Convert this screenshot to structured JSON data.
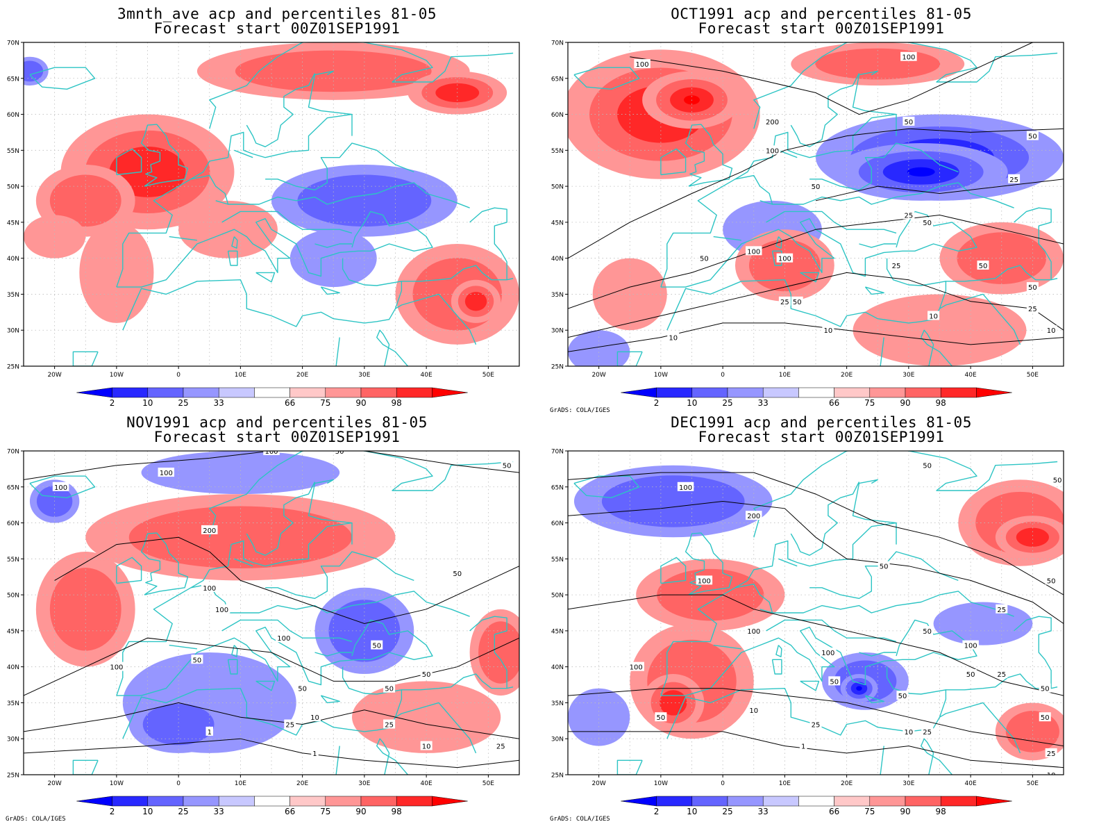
{
  "credit_text": "GrADS: COLA/IGES",
  "lat_labels": [
    "70N",
    "65N",
    "60N",
    "55N",
    "50N",
    "45N",
    "40N",
    "35N",
    "30N",
    "25N"
  ],
  "lon_labels": [
    "20W",
    "10W",
    "0",
    "10E",
    "20E",
    "30E",
    "40E",
    "50E"
  ],
  "colorbar": {
    "labels": [
      "2",
      "10",
      "25",
      "33",
      "66",
      "75",
      "90",
      "98"
    ],
    "below_colors": [
      "#0000ff",
      "#2828ff",
      "#6464ff",
      "#9696ff",
      "#c8c8ff"
    ],
    "above_colors": [
      "#ffc8c8",
      "#ff9696",
      "#ff6464",
      "#ff2828",
      "#ff0000"
    ]
  },
  "colors": {
    "coast": "#2cc4c4",
    "contour": "#000000",
    "grid": "#bcbcbc"
  },
  "panels": [
    {
      "title_line1": "3mnth_ave acp and percentiles 81-05",
      "title_line2": "Forecast start 00Z01SEP1991",
      "show_credit": false,
      "contour_labels": [],
      "anomalies": [
        {
          "lon": -5,
          "lat": 52,
          "rx": 14,
          "ry": 8,
          "level": 3
        },
        {
          "lon": -15,
          "lat": 48,
          "rx": 8,
          "ry": 5,
          "level": 2
        },
        {
          "lon": 25,
          "lat": 66,
          "rx": 22,
          "ry": 4,
          "level": 2
        },
        {
          "lon": 45,
          "lat": 63,
          "rx": 8,
          "ry": 3,
          "level": 3
        },
        {
          "lon": 8,
          "lat": 44,
          "rx": 8,
          "ry": 4,
          "level": 1
        },
        {
          "lon": -10,
          "lat": 38,
          "rx": 6,
          "ry": 7,
          "level": 1
        },
        {
          "lon": 45,
          "lat": 35,
          "rx": 10,
          "ry": 7,
          "level": 2
        },
        {
          "lon": 48,
          "lat": 34,
          "rx": 4,
          "ry": 3,
          "level": 3
        },
        {
          "lon": -20,
          "lat": 43,
          "rx": 5,
          "ry": 3,
          "level": 1
        },
        {
          "lon": 30,
          "lat": 48,
          "rx": 15,
          "ry": 5,
          "level": -2
        },
        {
          "lon": 25,
          "lat": 40,
          "rx": 7,
          "ry": 4,
          "level": -1
        },
        {
          "lon": -24,
          "lat": 66,
          "rx": 3,
          "ry": 2,
          "level": -2
        }
      ]
    },
    {
      "title_line1": "OCT1991 acp and percentiles 81-05",
      "title_line2": "Forecast start 00Z01SEP1991",
      "show_credit": true,
      "contour_labels": [
        {
          "text": "100",
          "lon": -13,
          "lat": 67
        },
        {
          "text": "100",
          "lon": 30,
          "lat": 68
        },
        {
          "text": "200",
          "lon": 8,
          "lat": 59
        },
        {
          "text": "100",
          "lon": 8,
          "lat": 55
        },
        {
          "text": "50",
          "lon": 30,
          "lat": 59
        },
        {
          "text": "50",
          "lon": 50,
          "lat": 57
        },
        {
          "text": "50",
          "lon": 15,
          "lat": 50
        },
        {
          "text": "25",
          "lon": 47,
          "lat": 51
        },
        {
          "text": "25",
          "lon": 30,
          "lat": 46
        },
        {
          "text": "50",
          "lon": 33,
          "lat": 45
        },
        {
          "text": "100",
          "lon": 5,
          "lat": 41
        },
        {
          "text": "100",
          "lon": 10,
          "lat": 40
        },
        {
          "text": "50",
          "lon": -3,
          "lat": 40
        },
        {
          "text": "25",
          "lon": 28,
          "lat": 39
        },
        {
          "text": "50",
          "lon": 42,
          "lat": 39
        },
        {
          "text": "50",
          "lon": 50,
          "lat": 36
        },
        {
          "text": "25",
          "lon": 50,
          "lat": 33
        },
        {
          "text": "25",
          "lon": 10,
          "lat": 34
        },
        {
          "text": "50",
          "lon": 12,
          "lat": 34
        },
        {
          "text": "10",
          "lon": 17,
          "lat": 30
        },
        {
          "text": "10",
          "lon": 34,
          "lat": 32
        },
        {
          "text": "10",
          "lon": 53,
          "lat": 30
        },
        {
          "text": "10",
          "lon": -8,
          "lat": 29
        }
      ],
      "anomalies": [
        {
          "lon": -10,
          "lat": 60,
          "rx": 16,
          "ry": 9,
          "level": 3
        },
        {
          "lon": -5,
          "lat": 62,
          "rx": 8,
          "ry": 4,
          "level": 4
        },
        {
          "lon": 35,
          "lat": 54,
          "rx": 20,
          "ry": 6,
          "level": -3
        },
        {
          "lon": 32,
          "lat": 52,
          "rx": 14,
          "ry": 4,
          "level": -4
        },
        {
          "lon": 8,
          "lat": 44,
          "rx": 8,
          "ry": 4,
          "level": -1
        },
        {
          "lon": 10,
          "lat": 39,
          "rx": 8,
          "ry": 5,
          "level": 2
        },
        {
          "lon": 45,
          "lat": 40,
          "rx": 10,
          "ry": 5,
          "level": 2
        },
        {
          "lon": 35,
          "lat": 30,
          "rx": 14,
          "ry": 5,
          "level": 1
        },
        {
          "lon": -15,
          "lat": 35,
          "rx": 6,
          "ry": 5,
          "level": 1
        },
        {
          "lon": -20,
          "lat": 27,
          "rx": 5,
          "ry": 3,
          "level": -1
        },
        {
          "lon": 25,
          "lat": 67,
          "rx": 14,
          "ry": 3,
          "level": 2
        }
      ]
    },
    {
      "title_line1": "NOV1991 acp and percentiles 81-05",
      "title_line2": "Forecast start 00Z01SEP1991",
      "show_credit": true,
      "contour_labels": [
        {
          "text": "100",
          "lon": -19,
          "lat": 65
        },
        {
          "text": "100",
          "lon": -2,
          "lat": 67
        },
        {
          "text": "100",
          "lon": 15,
          "lat": 70
        },
        {
          "text": "50",
          "lon": 26,
          "lat": 70
        },
        {
          "text": "50",
          "lon": 53,
          "lat": 68
        },
        {
          "text": "200",
          "lon": 5,
          "lat": 59
        },
        {
          "text": "50",
          "lon": 45,
          "lat": 53
        },
        {
          "text": "100",
          "lon": 5,
          "lat": 51
        },
        {
          "text": "100",
          "lon": 7,
          "lat": 48
        },
        {
          "text": "100",
          "lon": 17,
          "lat": 44
        },
        {
          "text": "50",
          "lon": 32,
          "lat": 43
        },
        {
          "text": "50",
          "lon": 3,
          "lat": 41
        },
        {
          "text": "100",
          "lon": -10,
          "lat": 40
        },
        {
          "text": "50",
          "lon": 40,
          "lat": 39
        },
        {
          "text": "50",
          "lon": 20,
          "lat": 37
        },
        {
          "text": "50",
          "lon": 34,
          "lat": 37
        },
        {
          "text": "25",
          "lon": 18,
          "lat": 32
        },
        {
          "text": "10",
          "lon": 22,
          "lat": 33
        },
        {
          "text": "25",
          "lon": 34,
          "lat": 32
        },
        {
          "text": "1",
          "lon": 5,
          "lat": 31
        },
        {
          "text": "10",
          "lon": 40,
          "lat": 29
        },
        {
          "text": "25",
          "lon": 52,
          "lat": 29
        },
        {
          "text": "1",
          "lon": 22,
          "lat": 28
        }
      ],
      "anomalies": [
        {
          "lon": 10,
          "lat": 58,
          "rx": 25,
          "ry": 6,
          "level": 2
        },
        {
          "lon": -15,
          "lat": 48,
          "rx": 8,
          "ry": 8,
          "level": 2
        },
        {
          "lon": -20,
          "lat": 63,
          "rx": 4,
          "ry": 3,
          "level": -2
        },
        {
          "lon": 30,
          "lat": 45,
          "rx": 8,
          "ry": 6,
          "level": -2
        },
        {
          "lon": 5,
          "lat": 35,
          "rx": 14,
          "ry": 7,
          "level": -1
        },
        {
          "lon": 0,
          "lat": 32,
          "rx": 8,
          "ry": 4,
          "level": -2
        },
        {
          "lon": 40,
          "lat": 33,
          "rx": 12,
          "ry": 5,
          "level": 1
        },
        {
          "lon": 52,
          "lat": 42,
          "rx": 5,
          "ry": 6,
          "level": 2
        },
        {
          "lon": 10,
          "lat": 67,
          "rx": 16,
          "ry": 3,
          "level": -1
        }
      ]
    },
    {
      "title_line1": "DEC1991 acp and percentiles 81-05",
      "title_line2": "Forecast start 00Z01SEP1991",
      "show_credit": true,
      "contour_labels": [
        {
          "text": "50",
          "lon": 33,
          "lat": 68
        },
        {
          "text": "50",
          "lon": 54,
          "lat": 66
        },
        {
          "text": "100",
          "lon": -6,
          "lat": 65
        },
        {
          "text": "200",
          "lon": 5,
          "lat": 61
        },
        {
          "text": "50",
          "lon": 26,
          "lat": 54
        },
        {
          "text": "100",
          "lon": -3,
          "lat": 52
        },
        {
          "text": "50",
          "lon": 53,
          "lat": 52
        },
        {
          "text": "25",
          "lon": 45,
          "lat": 48
        },
        {
          "text": "50",
          "lon": 33,
          "lat": 45
        },
        {
          "text": "100",
          "lon": 5,
          "lat": 45
        },
        {
          "text": "100",
          "lon": 40,
          "lat": 43
        },
        {
          "text": "100",
          "lon": 17,
          "lat": 42
        },
        {
          "text": "100",
          "lon": -14,
          "lat": 40
        },
        {
          "text": "50",
          "lon": 18,
          "lat": 38
        },
        {
          "text": "50",
          "lon": 40,
          "lat": 39
        },
        {
          "text": "25",
          "lon": 45,
          "lat": 39
        },
        {
          "text": "50",
          "lon": 52,
          "lat": 37
        },
        {
          "text": "50",
          "lon": 29,
          "lat": 36
        },
        {
          "text": "50",
          "lon": -10,
          "lat": 33
        },
        {
          "text": "10",
          "lon": 5,
          "lat": 34
        },
        {
          "text": "50",
          "lon": 52,
          "lat": 33
        },
        {
          "text": "25",
          "lon": 15,
          "lat": 32
        },
        {
          "text": "10",
          "lon": 30,
          "lat": 31
        },
        {
          "text": "25",
          "lon": 33,
          "lat": 31
        },
        {
          "text": "25",
          "lon": 53,
          "lat": 28
        },
        {
          "text": "1",
          "lon": 13,
          "lat": 29
        },
        {
          "text": "10",
          "lon": 53,
          "lat": 25
        }
      ],
      "anomalies": [
        {
          "lon": -8,
          "lat": 63,
          "rx": 16,
          "ry": 5,
          "level": -2
        },
        {
          "lon": 48,
          "lat": 60,
          "rx": 10,
          "ry": 6,
          "level": 2
        },
        {
          "lon": 50,
          "lat": 58,
          "rx": 6,
          "ry": 3,
          "level": 3
        },
        {
          "lon": -2,
          "lat": 50,
          "rx": 12,
          "ry": 5,
          "level": 2
        },
        {
          "lon": -5,
          "lat": 38,
          "rx": 10,
          "ry": 8,
          "level": 2
        },
        {
          "lon": -8,
          "lat": 35,
          "rx": 5,
          "ry": 4,
          "level": 3
        },
        {
          "lon": 23,
          "lat": 38,
          "rx": 7,
          "ry": 4,
          "level": -2
        },
        {
          "lon": 22,
          "lat": 37,
          "rx": 3,
          "ry": 2,
          "level": -4
        },
        {
          "lon": 42,
          "lat": 46,
          "rx": 8,
          "ry": 3,
          "level": -1
        },
        {
          "lon": -20,
          "lat": 33,
          "rx": 5,
          "ry": 4,
          "level": -1
        },
        {
          "lon": 50,
          "lat": 31,
          "rx": 6,
          "ry": 4,
          "level": 2
        }
      ]
    }
  ]
}
